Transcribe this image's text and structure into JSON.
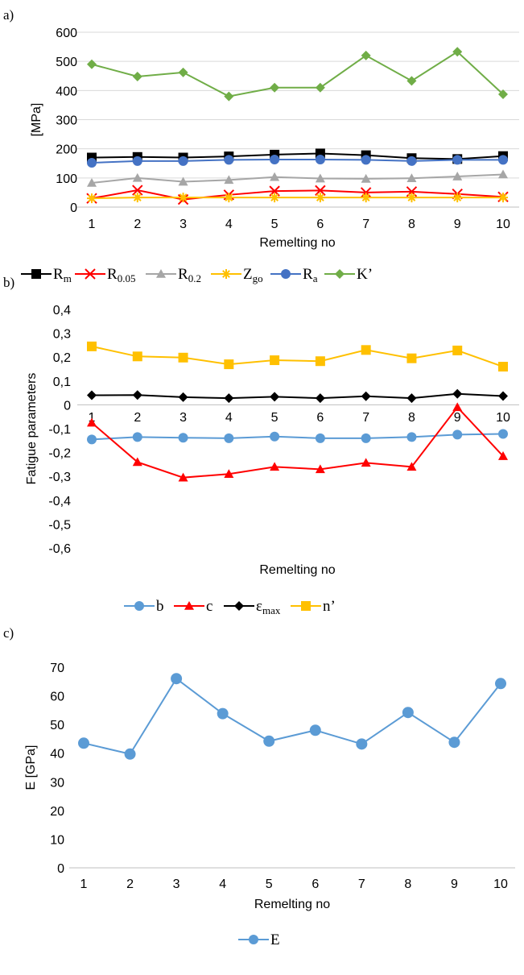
{
  "panels": {
    "a": "a)",
    "b": "b)",
    "c": "c)"
  },
  "chart_data": [
    {
      "type": "line",
      "panel": "a)",
      "xlabel": "Remelting no",
      "ylabel": "[MPa]",
      "categories": [
        "1",
        "2",
        "3",
        "4",
        "5",
        "6",
        "7",
        "8",
        "9",
        "10"
      ],
      "ylim": [
        0,
        600
      ],
      "yticks": [
        "0",
        "100",
        "200",
        "300",
        "400",
        "500",
        "600"
      ],
      "grid": "horizontal",
      "legend_position": "bottom",
      "series": [
        {
          "name": "R",
          "sub": "m",
          "color": "#000000",
          "marker": "square",
          "values": [
            170,
            172,
            170,
            174,
            180,
            184,
            178,
            168,
            165,
            175
          ]
        },
        {
          "name": "R",
          "sub": "0.05",
          "color": "#ff0000",
          "marker": "x",
          "values": [
            30,
            58,
            26,
            42,
            55,
            57,
            50,
            53,
            45,
            35
          ]
        },
        {
          "name": "R",
          "sub": "0.2",
          "color": "#a6a6a6",
          "marker": "triangle",
          "values": [
            83,
            100,
            87,
            93,
            103,
            98,
            97,
            99,
            105,
            112
          ]
        },
        {
          "name": "Z",
          "sub": "go",
          "color": "#ffc000",
          "marker": "star",
          "values": [
            30,
            33,
            33,
            33,
            33,
            33,
            33,
            33,
            33,
            33
          ]
        },
        {
          "name": "R",
          "sub": "a",
          "color": "#4472c4",
          "marker": "circle",
          "values": [
            152,
            158,
            158,
            162,
            163,
            163,
            162,
            158,
            162,
            162
          ]
        },
        {
          "name": "K’",
          "sub": "",
          "color": "#70ad47",
          "marker": "diamond",
          "values": [
            490,
            448,
            462,
            380,
            410,
            410,
            520,
            433,
            533,
            387
          ]
        }
      ]
    },
    {
      "type": "line",
      "panel": "b)",
      "xlabel": "Remelting no",
      "ylabel": "Fatigue parameters",
      "categories": [
        "1",
        "2",
        "3",
        "4",
        "5",
        "6",
        "7",
        "8",
        "9",
        "10"
      ],
      "ylim": [
        -0.6,
        0.4
      ],
      "yticks": [
        "-0,6",
        "-0,5",
        "-0,4",
        "-0,3",
        "-0,2",
        "-0,1",
        "0",
        "0,1",
        "0,2",
        "0,3",
        "0,4"
      ],
      "grid": "none",
      "legend_position": "bottom",
      "series": [
        {
          "name": "b",
          "sub": "",
          "color": "#5b9bd5",
          "marker": "circle",
          "values": [
            -0.145,
            -0.135,
            -0.138,
            -0.14,
            -0.133,
            -0.14,
            -0.14,
            -0.135,
            -0.125,
            -0.122
          ]
        },
        {
          "name": "c",
          "sub": "",
          "color": "#ff0000",
          "marker": "triangle",
          "values": [
            -0.075,
            -0.24,
            -0.305,
            -0.29,
            -0.26,
            -0.27,
            -0.243,
            -0.26,
            -0.01,
            -0.215
          ]
        },
        {
          "name": "ε",
          "sub": "max",
          "color": "#000000",
          "marker": "diamond",
          "values": [
            0.04,
            0.041,
            0.032,
            0.028,
            0.034,
            0.028,
            0.036,
            0.028,
            0.046,
            0.037
          ]
        },
        {
          "name": "n’",
          "sub": "",
          "color": "#ffc000",
          "marker": "square",
          "values": [
            0.245,
            0.203,
            0.198,
            0.17,
            0.187,
            0.183,
            0.23,
            0.195,
            0.228,
            0.16
          ]
        }
      ]
    },
    {
      "type": "line",
      "panel": "c)",
      "xlabel": "Remelting no",
      "ylabel": "E [GPa]",
      "categories": [
        "1",
        "2",
        "3",
        "4",
        "5",
        "6",
        "7",
        "8",
        "9",
        "10"
      ],
      "ylim": [
        0,
        70
      ],
      "yticks": [
        "0",
        "10",
        "20",
        "30",
        "40",
        "50",
        "60",
        "70"
      ],
      "grid": "none",
      "legend_position": "bottom",
      "series": [
        {
          "name": "E",
          "sub": "",
          "color": "#5b9bd5",
          "marker": "circle",
          "values": [
            43.5,
            39.7,
            66,
            53.8,
            44.2,
            48,
            43.2,
            54.2,
            43.8,
            64.3
          ]
        }
      ]
    }
  ]
}
